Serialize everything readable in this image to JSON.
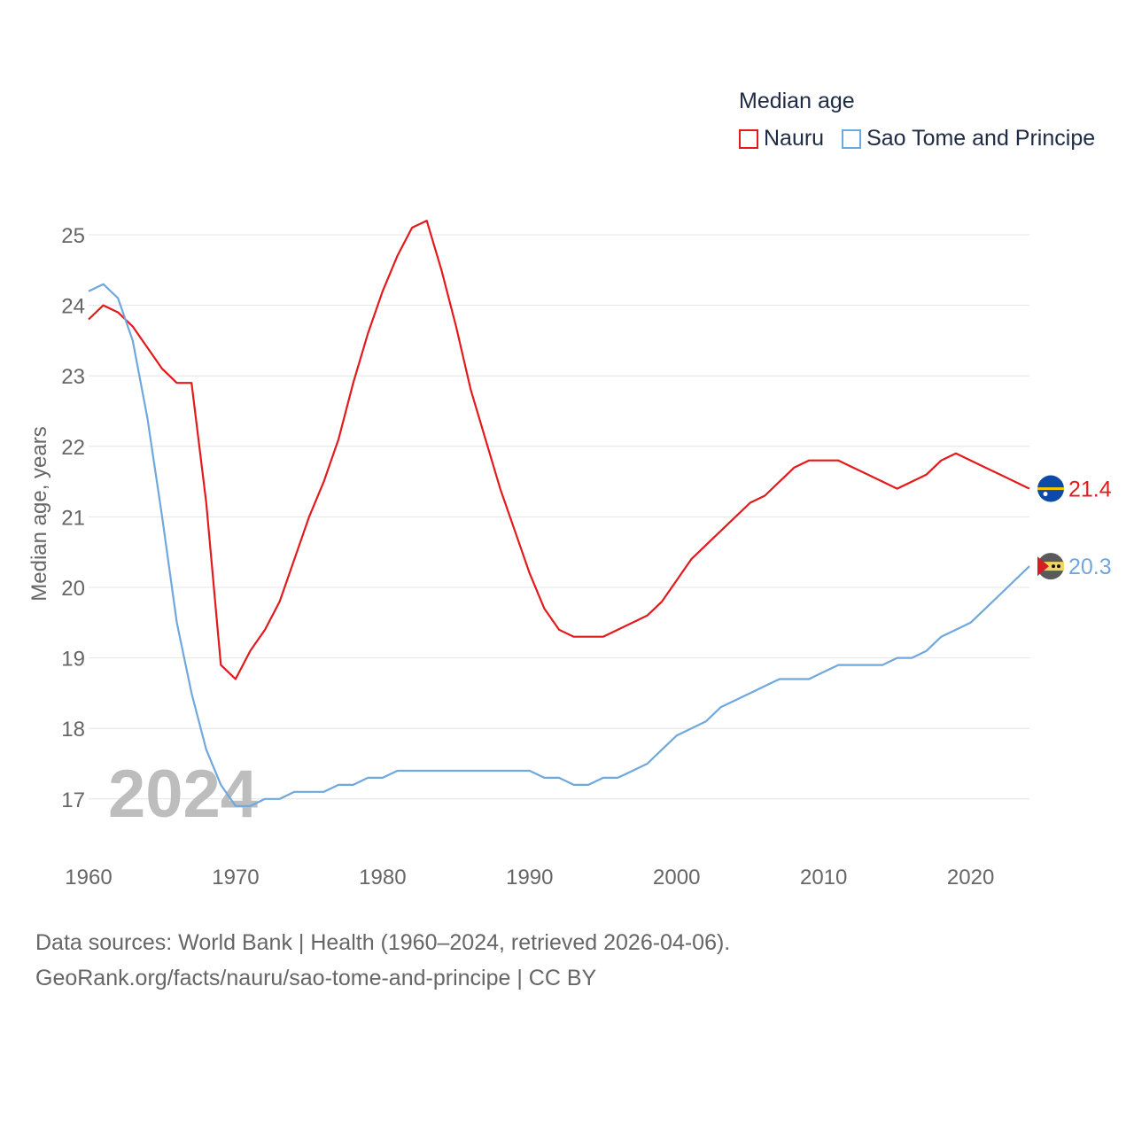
{
  "legend": {
    "title": "Median age"
  },
  "source": {
    "line1": "Data sources: World Bank | Health (1960–2024, retrieved 2026-04-06).",
    "line2": "GeoRank.org/facts/nauru/sao-tome-and-principe | CC BY"
  },
  "chart_data": {
    "type": "line",
    "title": "Median age",
    "xlabel": "",
    "ylabel": "Median age, years",
    "watermark_year": "2024",
    "xlim": [
      1960,
      2024
    ],
    "ylim": [
      16.5,
      25.3
    ],
    "grid": true,
    "legend_position": "top-right",
    "x_ticks": [
      1960,
      1970,
      1980,
      1990,
      2000,
      2010,
      2020
    ],
    "y_ticks": [
      17,
      18,
      19,
      20,
      21,
      22,
      23,
      24,
      25
    ],
    "x": [
      1960,
      1961,
      1962,
      1963,
      1964,
      1965,
      1966,
      1967,
      1968,
      1969,
      1970,
      1971,
      1972,
      1973,
      1974,
      1975,
      1976,
      1977,
      1978,
      1979,
      1980,
      1981,
      1982,
      1983,
      1984,
      1985,
      1986,
      1987,
      1988,
      1989,
      1990,
      1991,
      1992,
      1993,
      1994,
      1995,
      1996,
      1997,
      1998,
      1999,
      2000,
      2001,
      2002,
      2003,
      2004,
      2005,
      2006,
      2007,
      2008,
      2009,
      2010,
      2011,
      2012,
      2013,
      2014,
      2015,
      2016,
      2017,
      2018,
      2019,
      2020,
      2021,
      2022,
      2023,
      2024
    ],
    "series": [
      {
        "name": "Nauru",
        "color": "#e31a1c",
        "end_label": "21.4",
        "values": [
          23.8,
          24.0,
          23.9,
          23.7,
          23.4,
          23.1,
          22.9,
          22.9,
          21.2,
          18.9,
          18.7,
          19.1,
          19.4,
          19.8,
          20.4,
          21.0,
          21.5,
          22.1,
          22.9,
          23.6,
          24.2,
          24.7,
          25.1,
          25.2,
          24.5,
          23.7,
          22.8,
          22.1,
          21.4,
          20.8,
          20.2,
          19.7,
          19.4,
          19.3,
          19.3,
          19.3,
          19.4,
          19.5,
          19.6,
          19.8,
          20.1,
          20.4,
          20.6,
          20.8,
          21.0,
          21.2,
          21.3,
          21.5,
          21.7,
          21.8,
          21.8,
          21.8,
          21.7,
          21.6,
          21.5,
          21.4,
          21.5,
          21.6,
          21.8,
          21.9,
          21.8,
          21.7,
          21.6,
          21.5,
          21.4
        ]
      },
      {
        "name": "Sao Tome and Principe",
        "color": "#6fa8dc",
        "end_label": "20.3",
        "values": [
          24.2,
          24.3,
          24.1,
          23.5,
          22.4,
          21.0,
          19.5,
          18.5,
          17.7,
          17.2,
          16.9,
          16.9,
          17.0,
          17.0,
          17.1,
          17.1,
          17.1,
          17.2,
          17.2,
          17.3,
          17.3,
          17.4,
          17.4,
          17.4,
          17.4,
          17.4,
          17.4,
          17.4,
          17.4,
          17.4,
          17.4,
          17.3,
          17.3,
          17.2,
          17.2,
          17.3,
          17.3,
          17.4,
          17.5,
          17.7,
          17.9,
          18.0,
          18.1,
          18.3,
          18.4,
          18.5,
          18.6,
          18.7,
          18.7,
          18.7,
          18.8,
          18.9,
          18.9,
          18.9,
          18.9,
          19.0,
          19.0,
          19.1,
          19.3,
          19.4,
          19.5,
          19.7,
          19.9,
          20.1,
          20.3
        ]
      }
    ]
  }
}
